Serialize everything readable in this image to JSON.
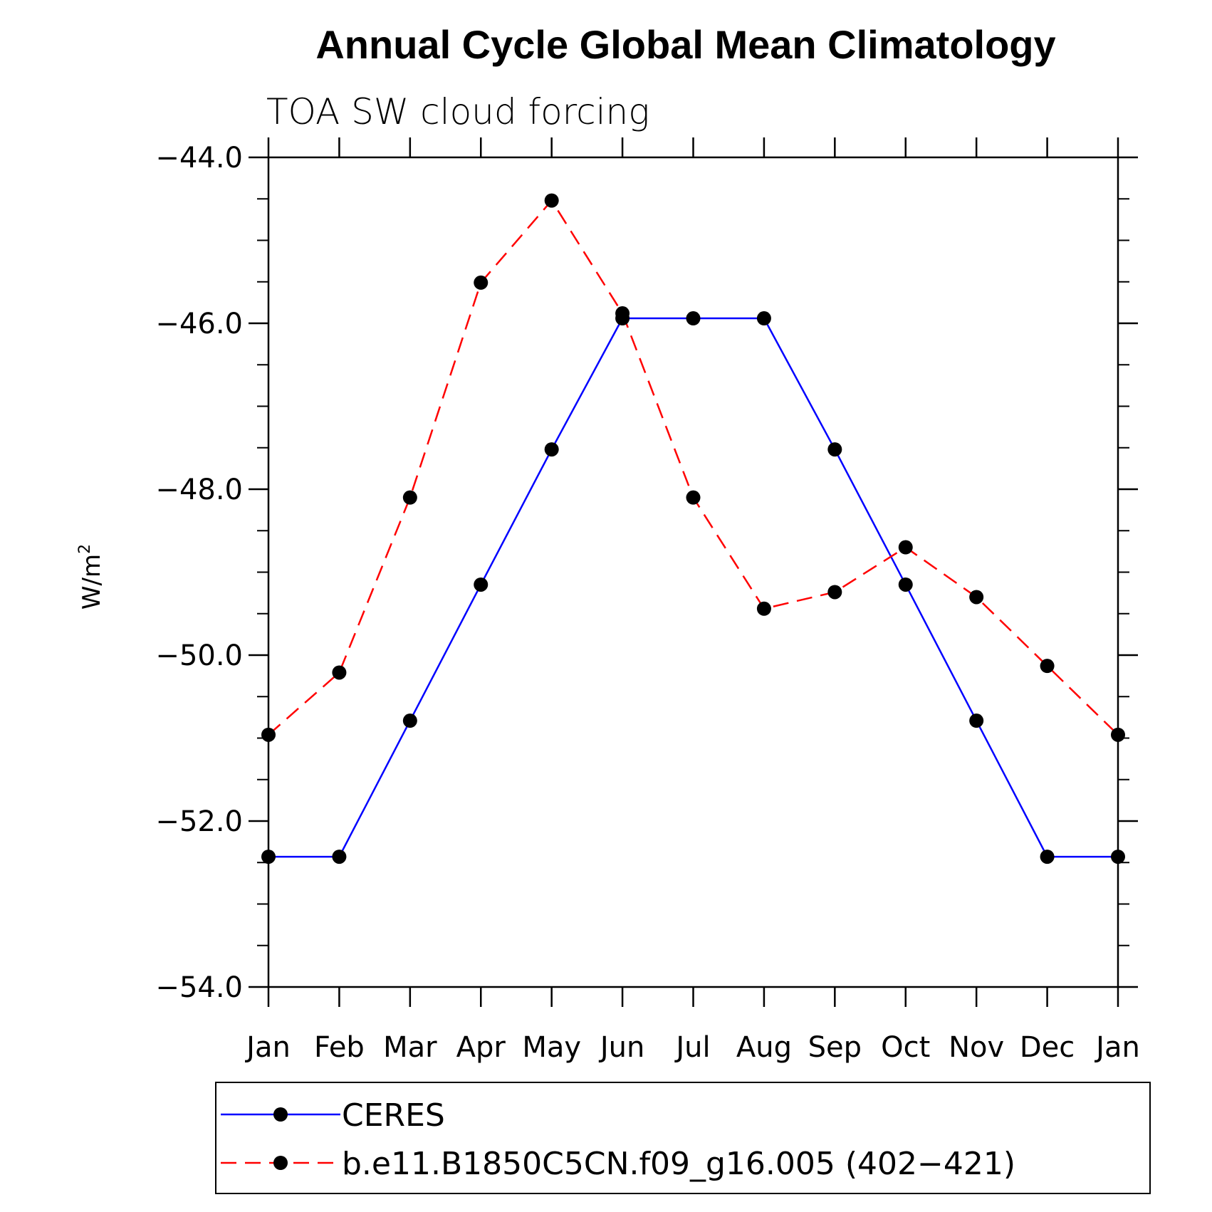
{
  "chart_data": {
    "type": "line",
    "title": "Annual Cycle Global Mean Climatology",
    "subtitle": "TOA SW cloud forcing",
    "ylabel": "W/m",
    "ylabel_sup": "2",
    "xlabel": "",
    "categories": [
      "Jan",
      "Feb",
      "Mar",
      "Apr",
      "May",
      "Jun",
      "Jul",
      "Aug",
      "Sep",
      "Oct",
      "Nov",
      "Dec",
      "Jan"
    ],
    "ylim": [
      -54.0,
      -44.0
    ],
    "yticks": [
      -54.0,
      -52.0,
      -50.0,
      -48.0,
      -46.0,
      -44.0
    ],
    "ytick_labels": [
      "−54.0",
      "−52.0",
      "−50.0",
      "−48.0",
      "−46.0",
      "−44.0"
    ],
    "series": [
      {
        "name": "CERES",
        "color": "#0000ff",
        "dash": "solid",
        "values": [
          -52.43,
          -52.43,
          -50.79,
          -49.15,
          -47.52,
          -45.94,
          -45.94,
          -45.94,
          -47.52,
          -49.15,
          -50.79,
          -52.43,
          -52.43
        ]
      },
      {
        "name": "b.e11.B1850C5CN.f09_g16.005 (402−421)",
        "color": "#ff0000",
        "dash": "dashed",
        "values": [
          -50.96,
          -50.21,
          -48.1,
          -45.51,
          -44.52,
          -45.88,
          -48.1,
          -49.44,
          -49.24,
          -48.7,
          -49.3,
          -50.13,
          -50.96
        ]
      }
    ],
    "marker_color": "#000000",
    "grid": false,
    "legend_position": "bottom"
  }
}
